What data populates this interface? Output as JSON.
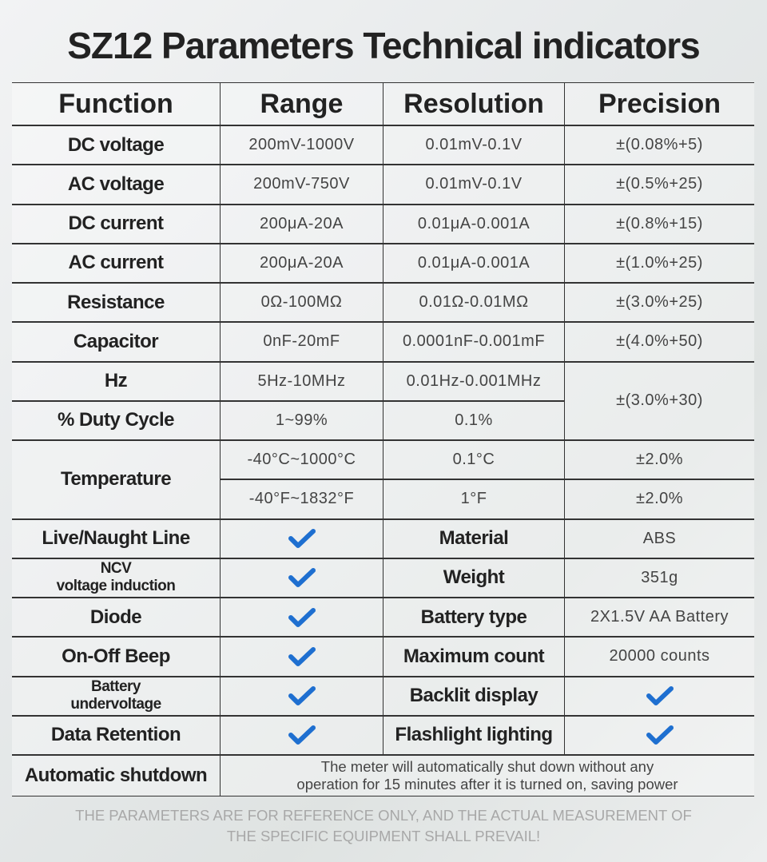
{
  "title": "SZ12 Parameters Technical indicators",
  "table": {
    "header": [
      "Function",
      "Range",
      "Resolution",
      "Precision"
    ],
    "rows": [
      [
        "DC voltage",
        "200mV-1000V",
        "0.01mV-0.1V",
        "±(0.08%+5)"
      ],
      [
        "AC voltage",
        "200mV-750V",
        "0.01mV-0.1V",
        "±(0.5%+25)"
      ],
      [
        "DC current",
        "200μA-20A",
        "0.01μA-0.001A",
        "±(0.8%+15)"
      ],
      [
        "AC current",
        "200μA-20A",
        "0.01μA-0.001A",
        "±(1.0%+25)"
      ],
      [
        "Resistance",
        "0Ω-100MΩ",
        "0.01Ω-0.01MΩ",
        "±(3.0%+25)"
      ],
      [
        "Capacitor",
        "0nF-20mF",
        "0.0001nF-0.001mF",
        "±(4.0%+50)"
      ]
    ],
    "hz": [
      "Hz",
      "5Hz-10MHz",
      "0.01Hz-0.001MHz",
      "±(3.0%+30)"
    ],
    "duty": [
      "% Duty Cycle",
      "1~99%",
      "0.1%"
    ],
    "temperature": {
      "name": "Temperature",
      "rows": [
        [
          "-40°C~1000°C",
          "0.1°C",
          "±2.0%"
        ],
        [
          "-40°F~1832°F",
          "1°F",
          "±2.0%"
        ]
      ]
    },
    "features": [
      {
        "left": "Live/Naught Line",
        "right": "Material",
        "right_value": "ABS"
      },
      {
        "left": "NCV\nvoltage induction",
        "right": "Weight",
        "right_value": "351g"
      },
      {
        "left": "Diode",
        "right": "Battery type",
        "right_value": "2X1.5V AA Battery"
      },
      {
        "left": "On-Off Beep",
        "right": "Maximum count",
        "right_value": "20000 counts"
      },
      {
        "left": "Battery\nundervoltage",
        "right": "Backlit display"
      },
      {
        "left": "Data Retention",
        "right": "Flashlight lighting"
      }
    ],
    "shutdown": {
      "label": "Automatic shutdown",
      "text": "The meter will automatically shut down without any\noperation for 15 minutes after it is turned on, saving power"
    }
  },
  "footer": "THE PARAMETERS ARE FOR REFERENCE ONLY, AND THE ACTUAL MEASUREMENT OF\nTHE SPECIFIC EQUIPMENT SHALL PREVAIL!"
}
